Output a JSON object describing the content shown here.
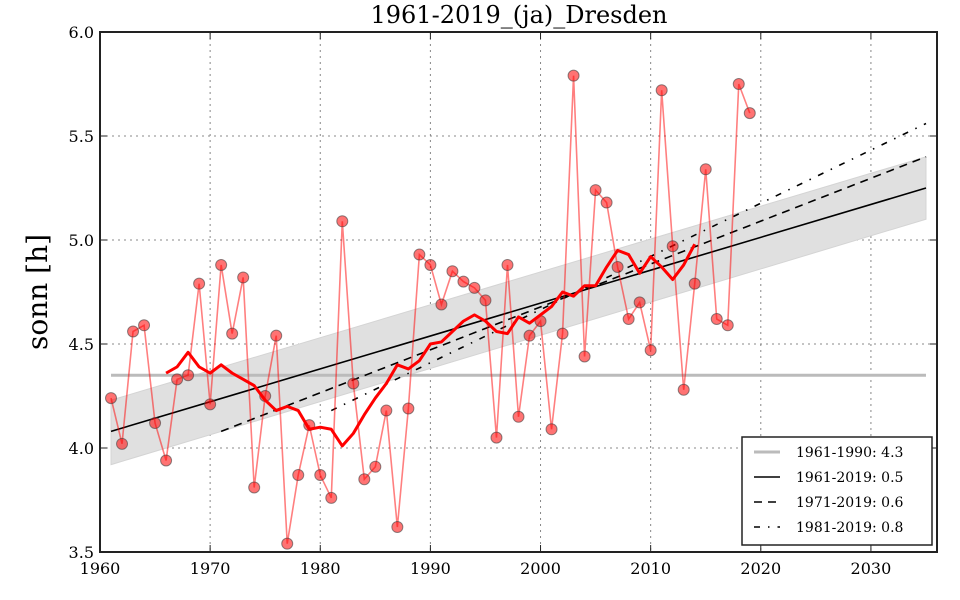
{
  "chart_data": {
    "type": "line",
    "title": "1961-2019_(ja)_Dresden",
    "xlabel": "",
    "ylabel": "sonn [h]",
    "xlim": [
      1960,
      2036
    ],
    "ylim": [
      3.5,
      6.0
    ],
    "grid": true,
    "xticks": [
      1960,
      1970,
      1980,
      1990,
      2000,
      2010,
      2020,
      2030
    ],
    "xtick_labels": [
      "1960",
      "1970",
      "1980",
      "1990",
      "2000",
      "2010",
      "2020",
      "2030"
    ],
    "yticks": [
      3.5,
      4.0,
      4.5,
      5.0,
      5.5,
      6.0
    ],
    "ytick_labels": [
      "3.5",
      "4.0",
      "4.5",
      "5.0",
      "5.5",
      "6.0"
    ],
    "legend_position": "bottom-right",
    "colors": {
      "annual": "#ff0000",
      "rolling": "#ff0000",
      "reference": "#bbbbbb",
      "trend": "#000000",
      "band": "#e0e0e0"
    },
    "annual": {
      "name": "annual",
      "x": [
        1961,
        1962,
        1963,
        1964,
        1965,
        1966,
        1967,
        1968,
        1969,
        1970,
        1971,
        1972,
        1973,
        1974,
        1975,
        1976,
        1977,
        1978,
        1979,
        1980,
        1981,
        1982,
        1983,
        1984,
        1985,
        1986,
        1987,
        1988,
        1989,
        1990,
        1991,
        1992,
        1993,
        1994,
        1995,
        1996,
        1997,
        1998,
        1999,
        2000,
        2001,
        2002,
        2003,
        2004,
        2005,
        2006,
        2007,
        2008,
        2009,
        2010,
        2011,
        2012,
        2013,
        2014,
        2015,
        2016,
        2017,
        2018,
        2019
      ],
      "values": [
        4.24,
        4.02,
        4.56,
        4.59,
        4.12,
        3.94,
        4.33,
        4.35,
        4.79,
        4.21,
        4.88,
        4.55,
        4.82,
        3.81,
        4.25,
        4.54,
        3.54,
        3.87,
        4.11,
        3.87,
        3.76,
        5.09,
        4.31,
        3.85,
        3.91,
        4.18,
        3.62,
        4.19,
        4.93,
        4.88,
        4.69,
        4.85,
        4.8,
        4.77,
        4.71,
        4.05,
        4.88,
        4.15,
        4.54,
        4.61,
        4.09,
        4.55,
        5.79,
        4.44,
        5.24,
        5.18,
        4.87,
        4.62,
        4.7,
        4.47,
        5.72,
        4.97,
        4.28,
        4.79,
        5.34,
        4.62,
        4.59,
        5.75,
        5.61
      ]
    },
    "rolling_mean": {
      "name": "rolling mean",
      "x": [
        1966,
        1967,
        1968,
        1969,
        1970,
        1971,
        1972,
        1973,
        1974,
        1975,
        1976,
        1977,
        1978,
        1979,
        1980,
        1981,
        1982,
        1983,
        1984,
        1985,
        1986,
        1987,
        1988,
        1989,
        1990,
        1991,
        1992,
        1993,
        1994,
        1995,
        1996,
        1997,
        1998,
        1999,
        2000,
        2001,
        2002,
        2003,
        2004,
        2005,
        2006,
        2007,
        2008,
        2009,
        2010,
        2011,
        2012,
        2013,
        2014
      ],
      "values": [
        4.36,
        4.39,
        4.46,
        4.39,
        4.36,
        4.4,
        4.36,
        4.33,
        4.3,
        4.23,
        4.18,
        4.2,
        4.18,
        4.09,
        4.1,
        4.09,
        4.01,
        4.07,
        4.16,
        4.24,
        4.31,
        4.4,
        4.38,
        4.42,
        4.5,
        4.51,
        4.56,
        4.61,
        4.64,
        4.61,
        4.56,
        4.55,
        4.63,
        4.6,
        4.64,
        4.68,
        4.75,
        4.73,
        4.78,
        4.78,
        4.87,
        4.95,
        4.93,
        4.84,
        4.92,
        4.87,
        4.81,
        4.88,
        4.98
      ]
    },
    "reference_line": {
      "label": "1961-1990: 4.3",
      "value": 4.35,
      "x_range": [
        1961,
        2035
      ]
    },
    "trends": [
      {
        "label": "1961-2019: 0.5",
        "style": "solid",
        "x": [
          1961,
          2035
        ],
        "values": [
          4.08,
          5.25
        ]
      },
      {
        "label": "1971-2019: 0.6",
        "style": "dashed",
        "x": [
          1971,
          2035
        ],
        "values": [
          4.08,
          5.4
        ]
      },
      {
        "label": "1981-2019: 0.8",
        "style": "dashdot",
        "x": [
          1981,
          2035
        ],
        "values": [
          4.18,
          5.56
        ]
      }
    ],
    "confidence_band": {
      "x": [
        1961,
        2035
      ],
      "upper": [
        4.23,
        5.4
      ],
      "lower": [
        3.92,
        5.1
      ]
    },
    "legend": [
      {
        "label": "1961-1990: 4.3",
        "style": "reference"
      },
      {
        "label": "1961-2019: 0.5",
        "style": "solid"
      },
      {
        "label": "1971-2019: 0.6",
        "style": "dashed"
      },
      {
        "label": "1981-2019: 0.8",
        "style": "dashdot"
      }
    ]
  }
}
